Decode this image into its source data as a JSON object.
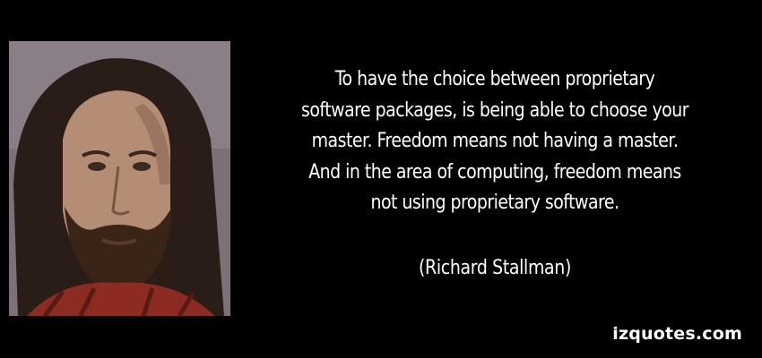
{
  "quote": {
    "lines": [
      "To have the choice between proprietary",
      "software packages, is being able to choose your",
      "master. Freedom means not having a master.",
      "And in the area of computing, freedom means",
      "not using proprietary software."
    ]
  },
  "attribution": "(Richard Stallman)",
  "watermark": "izquotes.com",
  "colors": {
    "background": "#000000",
    "text": "#ffffff"
  }
}
